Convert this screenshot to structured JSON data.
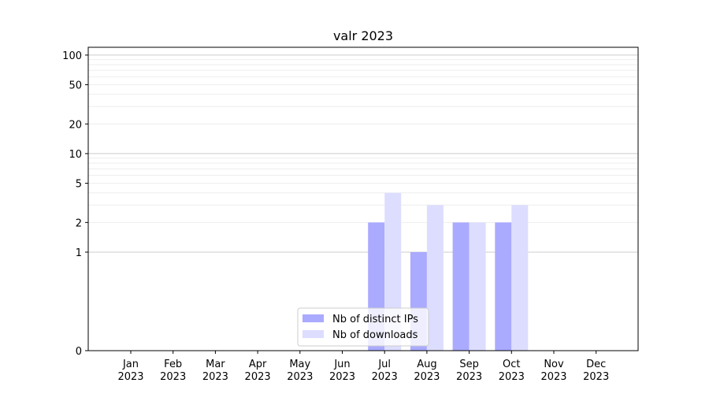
{
  "chart_data": {
    "type": "bar",
    "title": "valr 2023",
    "xlabel": "",
    "ylabel": "",
    "y_scale": "symlog",
    "ylim": [
      0,
      120
    ],
    "y_ticks": [
      0,
      1,
      2,
      5,
      10,
      20,
      50,
      100
    ],
    "grid": "horizontal",
    "legend_position": "bottom-center",
    "categories": [
      "Jan\n2023",
      "Feb\n2023",
      "Mar\n2023",
      "Apr\n2023",
      "May\n2023",
      "Jun\n2023",
      "Jul\n2023",
      "Aug\n2023",
      "Sep\n2023",
      "Oct\n2023",
      "Nov\n2023",
      "Dec\n2023"
    ],
    "series": [
      {
        "name": "Nb of distinct IPs",
        "color": "#aaaaff",
        "values": [
          0,
          0,
          0,
          0,
          0,
          0,
          2,
          1,
          2,
          2,
          0,
          0
        ]
      },
      {
        "name": "Nb of downloads",
        "color": "#ddddff",
        "values": [
          0,
          0,
          0,
          0,
          0,
          0,
          4,
          3,
          2,
          3,
          0,
          0
        ]
      }
    ]
  }
}
